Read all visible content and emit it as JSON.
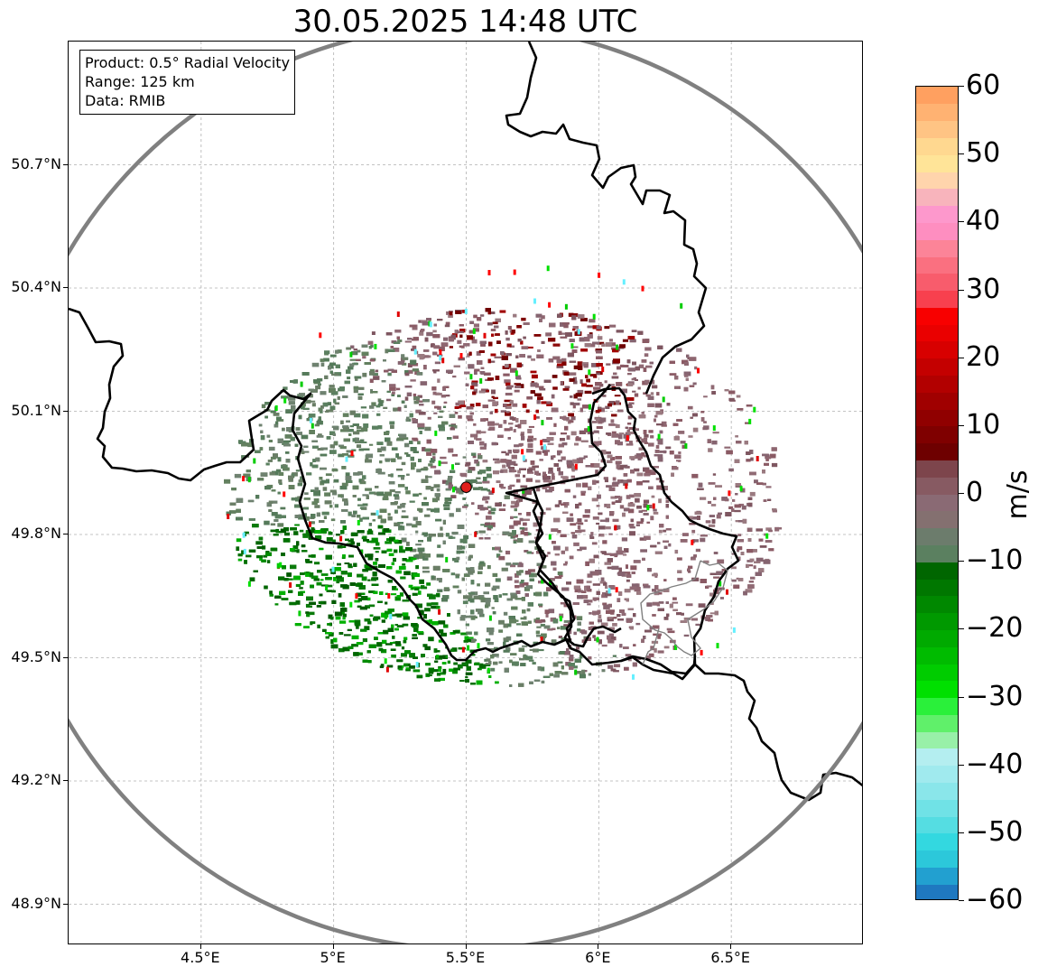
{
  "title": "30.05.2025 14:48 UTC",
  "info_box": {
    "product": "Product: 0.5° Radial Velocity",
    "range": "Range: 125 km",
    "data": "Data: RMIB"
  },
  "map": {
    "lon_range": [
      4.0,
      7.0
    ],
    "lat_range": [
      48.8,
      51.0
    ],
    "radar_site": {
      "lon": 5.5,
      "lat": 49.915,
      "color": "#e0201c"
    },
    "range_circle_km": 125,
    "grid": true,
    "border_color": "#000000",
    "range_ring_color": "#808080",
    "x_ticks": [
      {
        "value": 4.5,
        "label": "4.5°E"
      },
      {
        "value": 5.0,
        "label": "5°E"
      },
      {
        "value": 5.5,
        "label": "5.5°E"
      },
      {
        "value": 6.0,
        "label": "6°E"
      },
      {
        "value": 6.5,
        "label": "6.5°E"
      }
    ],
    "y_ticks": [
      {
        "value": 50.7,
        "label": "50.7°N"
      },
      {
        "value": 50.4,
        "label": "50.4°N"
      },
      {
        "value": 50.1,
        "label": "50.1°N"
      },
      {
        "value": 49.8,
        "label": "49.8°N"
      },
      {
        "value": 49.5,
        "label": "49.5°N"
      },
      {
        "value": 49.2,
        "label": "49.2°N"
      },
      {
        "value": 48.9,
        "label": "48.9°N"
      }
    ]
  },
  "colorbar": {
    "unit": "m/s",
    "min": -60,
    "max": 60,
    "tick_labels": [
      "60",
      "50",
      "40",
      "30",
      "20",
      "10",
      "0",
      "−10",
      "−20",
      "−30",
      "−40",
      "−50",
      "−60"
    ],
    "tick_values": [
      60,
      50,
      40,
      30,
      20,
      10,
      0,
      -10,
      -20,
      -30,
      -40,
      -50,
      -60
    ],
    "colors": [
      "#1f78c0",
      "#22a0d0",
      "#2cc8da",
      "#33d8e0",
      "#55dde2",
      "#70e2e6",
      "#8ae6ea",
      "#a0eaee",
      "#b4eef0",
      "#98f0a8",
      "#60f06a",
      "#2af03a",
      "#00e000",
      "#00cc00",
      "#00bb00",
      "#00aa00",
      "#009900",
      "#008800",
      "#007700",
      "#006600",
      "#5b8060",
      "#6c7c6c",
      "#847070",
      "#8a6a74",
      "#875a62",
      "#7d454c",
      "#6e0000",
      "#7f0000",
      "#900000",
      "#a00000",
      "#b20000",
      "#c40000",
      "#d80000",
      "#ea0000",
      "#f80000",
      "#f8404e",
      "#f85c6c",
      "#fa7080",
      "#fc8498",
      "#fe8ec0",
      "#fd98cc",
      "#f8b4bc",
      "#ffd4ac",
      "#ffe498",
      "#ffd890",
      "#ffc484",
      "#ffb272",
      "#ffa060"
    ]
  },
  "velocity_field": {
    "field_type": "radial-velocity",
    "dominant_colors": {
      "inbound_strong": "#006600",
      "inbound_light": "#5b8060",
      "near_zero": "#7a7a78",
      "outbound_light": "#8a5a64",
      "outbound_strong": "#7f0000"
    }
  }
}
